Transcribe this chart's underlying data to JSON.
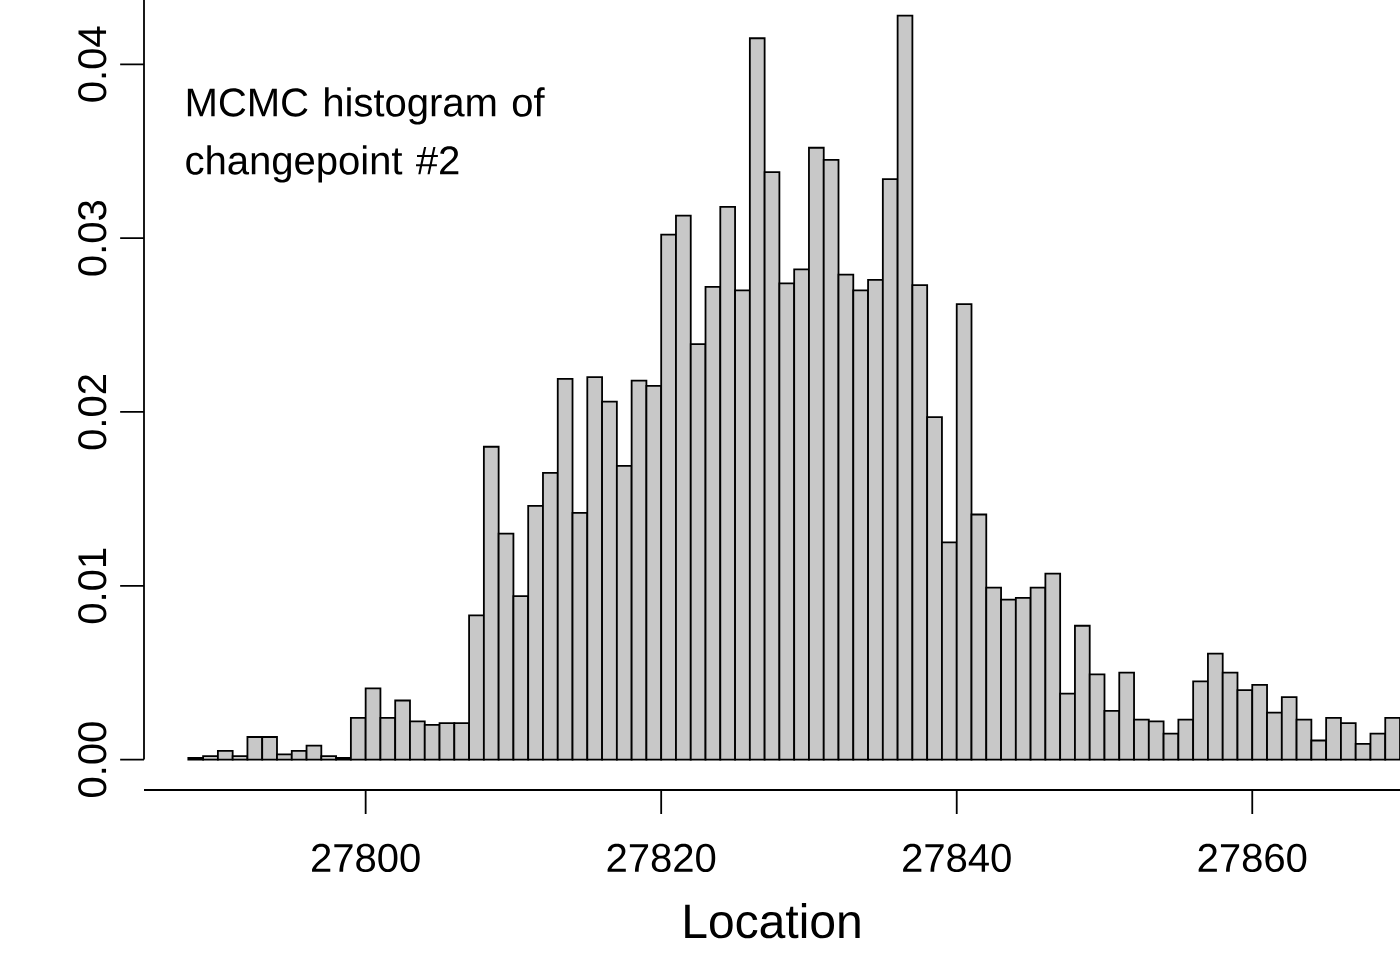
{
  "chart_data": {
    "type": "histogram",
    "xlabel": "Location",
    "annotations": [
      "MCMC histogram of changepoint #2"
    ],
    "color": "#c8c8c8",
    "bins": [
      27788,
      27789,
      27790,
      27791,
      27792,
      27793,
      27794,
      27795,
      27796,
      27797,
      27798,
      27799,
      27800,
      27801,
      27802,
      27803,
      27804,
      27805,
      27806,
      27807,
      27808,
      27809,
      27810,
      27811,
      27812,
      27813,
      27814,
      27815,
      27816,
      27817,
      27818,
      27819,
      27820,
      27821,
      27822,
      27823,
      27824,
      27825,
      27826,
      27827,
      27828,
      27829,
      27830,
      27831,
      27832,
      27833,
      27834,
      27835,
      27836,
      27837,
      27838,
      27839,
      27840,
      27841,
      27842,
      27843,
      27844,
      27845,
      27846,
      27847,
      27848,
      27849,
      27850,
      27851,
      27852,
      27853,
      27854,
      27855,
      27856,
      27857,
      27858,
      27859,
      27860,
      27861,
      27862,
      27863,
      27864,
      27865,
      27866,
      27867,
      27868,
      27869,
      27870
    ],
    "values": [
      0.0001,
      0.0002,
      0.0005,
      0.0002,
      0.0013,
      0.0013,
      0.0003,
      0.0005,
      0.0008,
      0.0002,
      0.0001,
      0.0024,
      0.0041,
      0.0024,
      0.0034,
      0.0022,
      0.002,
      0.0021,
      0.0021,
      0.0083,
      0.018,
      0.013,
      0.0094,
      0.0146,
      0.0165,
      0.0219,
      0.0142,
      0.022,
      0.0206,
      0.0169,
      0.0218,
      0.0215,
      0.0302,
      0.0313,
      0.0239,
      0.0272,
      0.0318,
      0.027,
      0.0415,
      0.0338,
      0.0274,
      0.0282,
      0.0352,
      0.0345,
      0.0279,
      0.027,
      0.0276,
      0.0334,
      0.0428,
      0.0273,
      0.0197,
      0.0125,
      0.0262,
      0.0141,
      0.0099,
      0.0092,
      0.0093,
      0.0099,
      0.0107,
      0.0038,
      0.0077,
      0.0049,
      0.0028,
      0.005,
      0.0023,
      0.0022,
      0.0015,
      0.0023,
      0.0045,
      0.0061,
      0.005,
      0.004,
      0.0043,
      0.0027,
      0.0036,
      0.0023,
      0.0011,
      0.0024,
      0.0021,
      0.0009,
      0.0015,
      0.0024
    ],
    "xlim": [
      27785,
      27870
    ],
    "ylim": [
      0,
      0.0437
    ],
    "xticks": [
      27800,
      27820,
      27840,
      27860
    ],
    "yticks": [
      {
        "value": 0,
        "label": "0.00"
      },
      0.01,
      0.02,
      0.03,
      0.04
    ]
  }
}
